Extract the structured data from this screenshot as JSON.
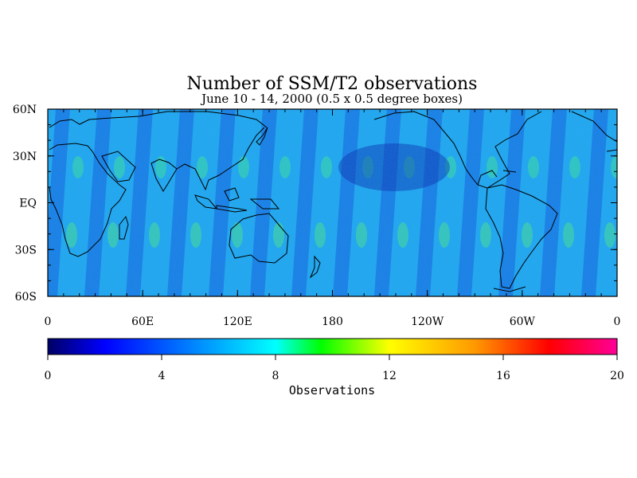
{
  "title": "Number of SSM/T2 observations",
  "subtitle": "June 10 - 14, 2000 (0.5 x 0.5 degree boxes)",
  "map": {
    "lat_labels": [
      "60N",
      "30N",
      "EQ",
      "30S",
      "60S"
    ],
    "lon_labels": [
      "0",
      "60E",
      "120E",
      "180",
      "120W",
      "60W",
      "0"
    ],
    "lat_range": [
      -60,
      60
    ],
    "lon_range": [
      0,
      360
    ]
  },
  "colorbar": {
    "label": "Observations",
    "tick_labels": [
      "0",
      "4",
      "8",
      "12",
      "16",
      "20"
    ],
    "range": [
      0,
      20
    ],
    "colors": [
      "#000066",
      "#0000ff",
      "#00aaff",
      "#00ffff",
      "#00ff00",
      "#ffff00",
      "#ff9900",
      "#ff0000",
      "#ff0099"
    ]
  }
}
